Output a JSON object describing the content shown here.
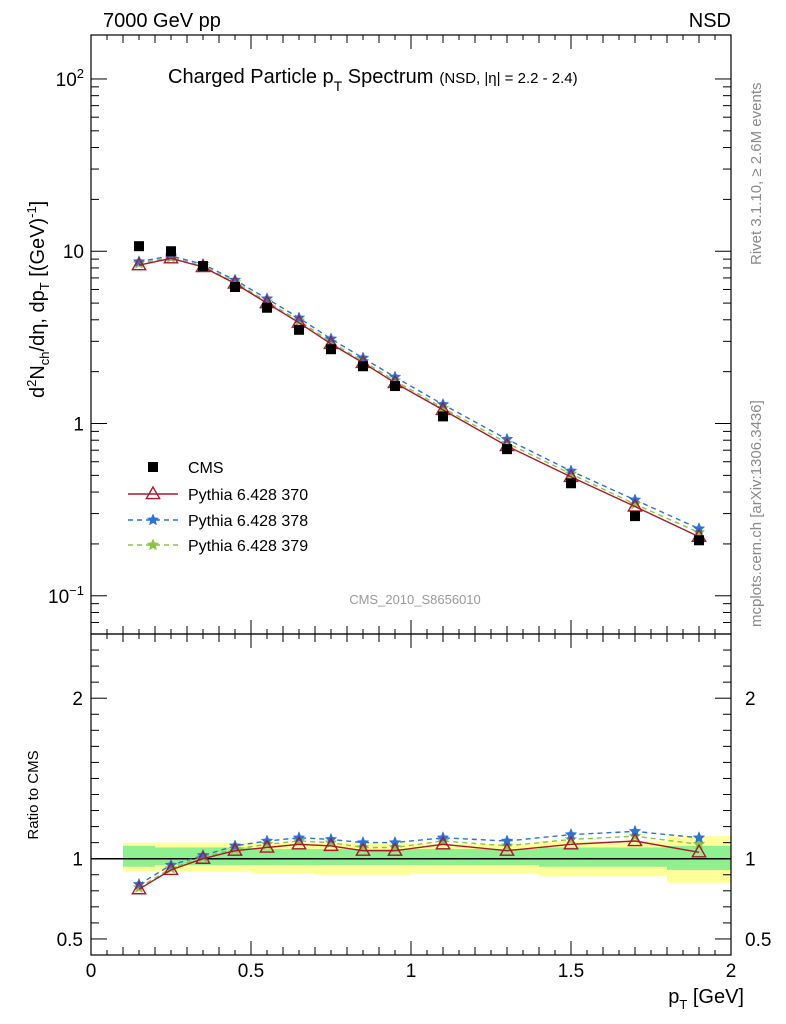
{
  "header": {
    "left": "7000 GeV pp",
    "right": "NSD"
  },
  "side_labels": {
    "rivet": "Rivet 3.1.10, ≥ 2.6M events",
    "mcplots": "mcplots.cern.ch [arXiv:1306.3436]"
  },
  "main_title": {
    "prefix": "Charged Particle p",
    "sub": "T",
    "suffix": " Spectrum",
    "note": "(NSD, |η| = 2.2 - 2.4)"
  },
  "analysis_label": "CMS_2010_S8656010",
  "axes": {
    "ylabel_main": "d²N_ch/dη, dp_T [(GeV)⁻¹]",
    "ylabel_ratio": "Ratio to CMS",
    "xlabel": "p_T [GeV]"
  },
  "legend": {
    "cms": "CMS",
    "p370": "Pythia 6.428 370",
    "p378": "Pythia 6.428 378",
    "p379": "Pythia 6.428 379"
  },
  "colors": {
    "cms": "#000000",
    "p370": "#a8192e",
    "p378": "#2b73d6",
    "p379": "#8cc63e",
    "band_stat": "#8ff08f",
    "band_syst": "#ffff99"
  },
  "chart_data": [
    {
      "type": "scatter",
      "title": "Charged Particle pT Spectrum (NSD, |η| = 2.2 - 2.4)",
      "xlabel": "p_T [GeV]",
      "ylabel": "d²N_ch/dη, dp_T [(GeV)⁻¹]",
      "yscale": "log",
      "xlim": [
        0,
        2
      ],
      "ylim": [
        0.06,
        180
      ],
      "x": [
        0.15,
        0.25,
        0.35,
        0.45,
        0.55,
        0.65,
        0.75,
        0.85,
        0.95,
        1.1,
        1.3,
        1.5,
        1.7,
        1.9
      ],
      "series": [
        {
          "name": "CMS",
          "values": [
            10.7,
            10.0,
            8.2,
            6.2,
            4.7,
            3.5,
            2.7,
            2.15,
            1.65,
            1.1,
            0.71,
            0.45,
            0.29,
            0.21
          ]
        },
        {
          "name": "Pythia 6.428 370",
          "values": [
            8.3,
            9.1,
            8.1,
            6.5,
            5.0,
            3.85,
            2.9,
            2.25,
            1.72,
            1.2,
            0.74,
            0.49,
            0.33,
            0.22
          ]
        },
        {
          "name": "Pythia 6.428 378",
          "values": [
            8.7,
            9.4,
            8.4,
            6.8,
            5.3,
            4.1,
            3.1,
            2.4,
            1.86,
            1.29,
            0.81,
            0.53,
            0.36,
            0.245
          ]
        },
        {
          "name": "Pythia 6.428 379",
          "values": [
            8.5,
            9.2,
            8.2,
            6.6,
            5.1,
            3.95,
            2.97,
            2.3,
            1.77,
            1.23,
            0.77,
            0.51,
            0.34,
            0.233
          ]
        }
      ],
      "legend_position": "lower-left"
    },
    {
      "type": "line",
      "ylabel": "Ratio to CMS",
      "xlabel": "p_T [GeV]",
      "xlim": [
        0,
        2
      ],
      "ylim": [
        0.4,
        2.4
      ],
      "x": [
        0.15,
        0.25,
        0.35,
        0.45,
        0.55,
        0.65,
        0.75,
        0.85,
        0.95,
        1.1,
        1.3,
        1.5,
        1.7,
        1.9
      ],
      "series": [
        {
          "name": "Pythia 6.428 370",
          "values": [
            0.81,
            0.93,
            1.0,
            1.05,
            1.07,
            1.09,
            1.08,
            1.05,
            1.05,
            1.09,
            1.05,
            1.09,
            1.11,
            1.04
          ]
        },
        {
          "name": "Pythia 6.428 378",
          "values": [
            0.84,
            0.96,
            1.02,
            1.08,
            1.11,
            1.13,
            1.12,
            1.1,
            1.1,
            1.13,
            1.11,
            1.15,
            1.17,
            1.13
          ]
        },
        {
          "name": "Pythia 6.428 379",
          "values": [
            0.82,
            0.94,
            1.01,
            1.06,
            1.09,
            1.11,
            1.1,
            1.07,
            1.07,
            1.11,
            1.08,
            1.12,
            1.14,
            1.09
          ]
        }
      ],
      "band_x_edges": [
        0.1,
        0.2,
        0.3,
        0.4,
        0.5,
        0.6,
        0.7,
        0.8,
        0.9,
        1.0,
        1.2,
        1.4,
        1.6,
        1.8,
        2.0
      ],
      "band_stat": [
        [
          0.95,
          1.08
        ],
        [
          0.96,
          1.07
        ],
        [
          0.96,
          1.07
        ],
        [
          0.96,
          1.07
        ],
        [
          0.96,
          1.06
        ],
        [
          0.96,
          1.06
        ],
        [
          0.96,
          1.06
        ],
        [
          0.96,
          1.06
        ],
        [
          0.96,
          1.06
        ],
        [
          0.96,
          1.06
        ],
        [
          0.96,
          1.06
        ],
        [
          0.95,
          1.07
        ],
        [
          0.95,
          1.07
        ],
        [
          0.93,
          1.08
        ]
      ],
      "band_syst": [
        [
          0.92,
          1.1
        ],
        [
          0.92,
          1.1
        ],
        [
          0.92,
          1.1
        ],
        [
          0.92,
          1.1
        ],
        [
          0.91,
          1.1
        ],
        [
          0.91,
          1.1
        ],
        [
          0.9,
          1.1
        ],
        [
          0.9,
          1.1
        ],
        [
          0.9,
          1.1
        ],
        [
          0.91,
          1.09
        ],
        [
          0.91,
          1.09
        ],
        [
          0.89,
          1.11
        ],
        [
          0.89,
          1.11
        ],
        [
          0.85,
          1.14
        ]
      ]
    }
  ]
}
